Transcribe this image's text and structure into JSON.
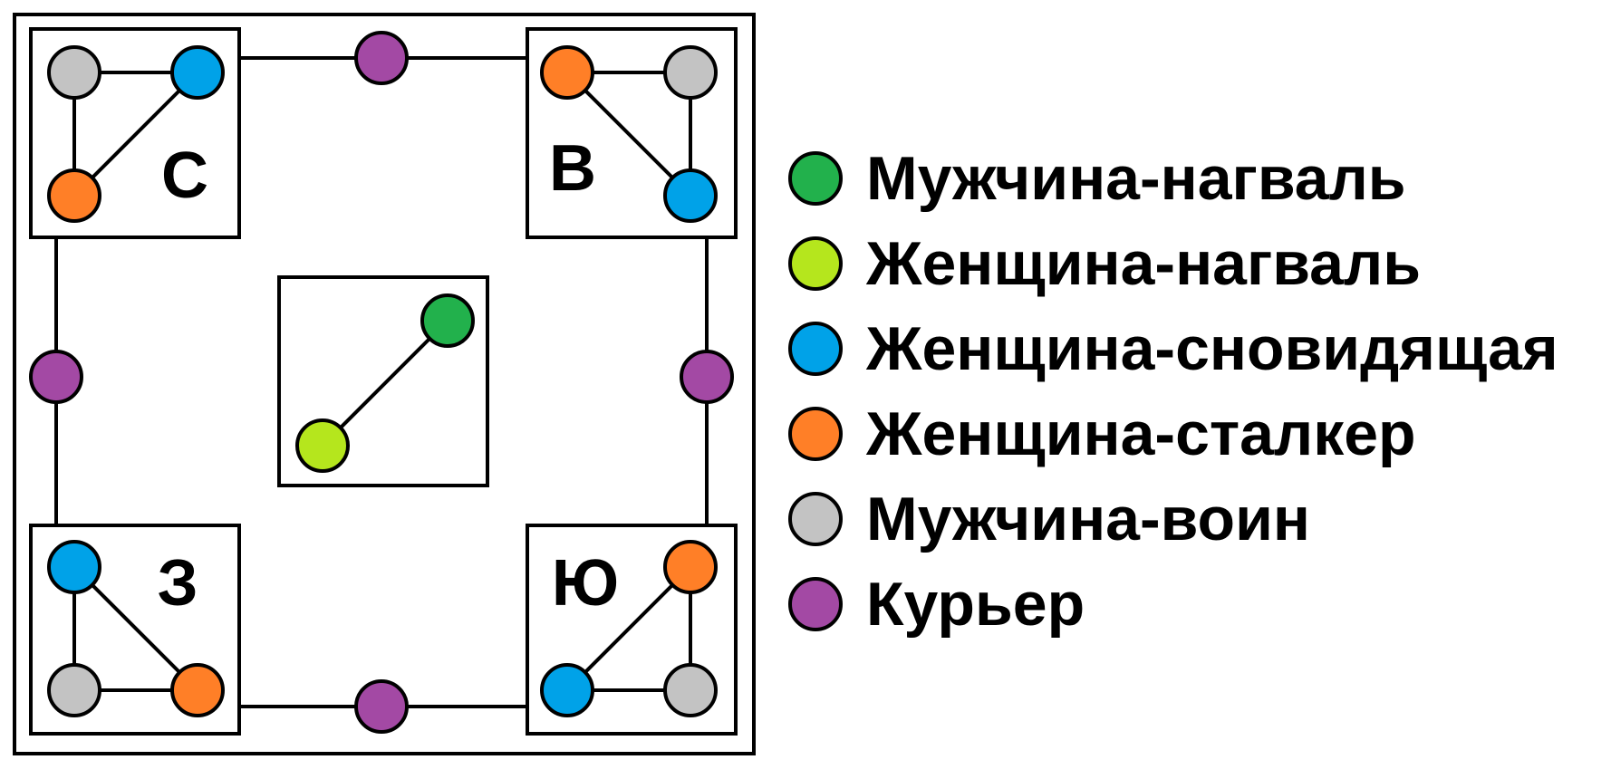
{
  "colors": {
    "nagual_male": "#22b14c",
    "nagual_female": "#b5e61d",
    "dreamer": "#00a2e8",
    "stalker": "#ff7f27",
    "warrior": "#c3c3c3",
    "courier": "#a349a4"
  },
  "corners": {
    "north": {
      "label": "С"
    },
    "east": {
      "label": "В"
    },
    "west": {
      "label": "З"
    },
    "south": {
      "label": "Ю"
    }
  },
  "legend": [
    {
      "label": "Мужчина-нагваль",
      "color": "#22b14c"
    },
    {
      "label": "Женщина-нагваль",
      "color": "#b5e61d"
    },
    {
      "label": "Женщина-сновидящая",
      "color": "#00a2e8"
    },
    {
      "label": "Женщина-сталкер",
      "color": "#ff7f27"
    },
    {
      "label": "Мужчина-воин",
      "color": "#c3c3c3"
    },
    {
      "label": "Курьер",
      "color": "#a349a4"
    }
  ]
}
